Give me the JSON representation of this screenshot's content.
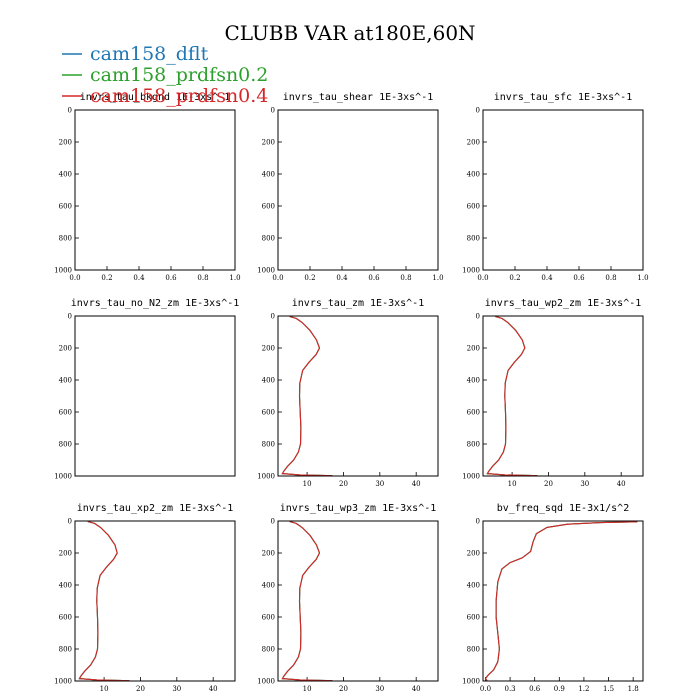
{
  "figure_title": "CLUBB VAR at180E,60N",
  "legend": [
    {
      "name": "cam158_dflt",
      "color": "#1f77b4"
    },
    {
      "name": "cam158_prdfsn0.2",
      "color": "#2ca02c"
    },
    {
      "name": "cam158_prdfsn0.4",
      "color": "#d62728"
    }
  ],
  "chart_data": [
    {
      "type": "line",
      "title": "invrs_tau_bkgnd 1E-3xs^-1",
      "xlim": [
        0,
        1
      ],
      "ylim": [
        0,
        1000
      ],
      "y_inverted": true,
      "xticks": [
        0,
        0.2,
        0.4,
        0.6,
        0.8,
        1.0
      ],
      "xtick_labels": [
        "0.0",
        "0.2",
        "0.4",
        "0.6",
        "0.8",
        "1.0"
      ],
      "yticks": [
        0,
        200,
        400,
        600,
        800,
        1000
      ],
      "series": []
    },
    {
      "type": "line",
      "title": "invrs_tau_shear 1E-3xs^-1",
      "xlim": [
        0,
        1
      ],
      "ylim": [
        0,
        1000
      ],
      "y_inverted": true,
      "xticks": [
        0,
        0.2,
        0.4,
        0.6,
        0.8,
        1.0
      ],
      "xtick_labels": [
        "0.0",
        "0.2",
        "0.4",
        "0.6",
        "0.8",
        "1.0"
      ],
      "yticks": [
        0,
        200,
        400,
        600,
        800,
        1000
      ],
      "series": []
    },
    {
      "type": "line",
      "title": "invrs_tau_sfc 1E-3xs^-1",
      "xlim": [
        0,
        1
      ],
      "ylim": [
        0,
        1000
      ],
      "y_inverted": true,
      "xticks": [
        0,
        0.2,
        0.4,
        0.6,
        0.8,
        1.0
      ],
      "xtick_labels": [
        "0.0",
        "0.2",
        "0.4",
        "0.6",
        "0.8",
        "1.0"
      ],
      "yticks": [
        0,
        200,
        400,
        600,
        800,
        1000
      ],
      "series": []
    },
    {
      "type": "line",
      "title": "invrs_tau_no_N2_zm 1E-3xs^-1",
      "xlim": [
        0,
        1
      ],
      "ylim": [
        0,
        1000
      ],
      "y_inverted": true,
      "xticks": [],
      "xtick_labels": [],
      "yticks": [
        0,
        200,
        400,
        600,
        800,
        1000
      ],
      "series": []
    },
    {
      "type": "line",
      "title": "invrs_tau_zm 1E-3xs^-1",
      "xlim": [
        2,
        46
      ],
      "ylim": [
        0,
        1000
      ],
      "y_inverted": true,
      "xticks": [
        10,
        20,
        30,
        40
      ],
      "xtick_labels": [
        "10",
        "20",
        "30",
        "40"
      ],
      "yticks": [
        0,
        200,
        400,
        600,
        800,
        1000
      ],
      "series": [
        {
          "name": "cam158_dflt",
          "color": "#1f77b4",
          "x": [
            5.2,
            7.0,
            8.6,
            10.8,
            12.6,
            13.4,
            12.5,
            10.5,
            8.8,
            8.0,
            7.9,
            8.1,
            8.3,
            8.2,
            7.6,
            6.3,
            4.6,
            3.6,
            3.2,
            8.0,
            17.0
          ],
          "y": [
            3,
            15,
            40,
            90,
            150,
            200,
            240,
            290,
            340,
            420,
            500,
            600,
            700,
            800,
            850,
            900,
            940,
            970,
            985,
            993,
            998
          ]
        },
        {
          "name": "cam158_prdfsn0.2",
          "color": "#2ca02c",
          "x": [
            5.2,
            7.0,
            8.6,
            10.8,
            12.6,
            13.4,
            12.5,
            10.5,
            8.8,
            8.0,
            7.9,
            8.1,
            8.3,
            8.2,
            7.6,
            6.3,
            4.6,
            3.6,
            3.2,
            8.0,
            17.0
          ],
          "y": [
            3,
            15,
            40,
            90,
            150,
            200,
            240,
            290,
            340,
            420,
            500,
            600,
            700,
            800,
            850,
            900,
            940,
            970,
            985,
            993,
            998
          ]
        },
        {
          "name": "cam158_prdfsn0.4",
          "color": "#d62728",
          "x": [
            5.2,
            7.0,
            8.6,
            10.8,
            12.6,
            13.4,
            12.5,
            10.5,
            8.8,
            8.0,
            7.9,
            8.1,
            8.3,
            8.2,
            7.6,
            6.3,
            4.6,
            3.6,
            3.2,
            8.0,
            17.0
          ],
          "y": [
            3,
            15,
            40,
            90,
            150,
            200,
            240,
            290,
            340,
            420,
            500,
            600,
            700,
            800,
            850,
            900,
            940,
            970,
            985,
            993,
            998
          ]
        }
      ]
    },
    {
      "type": "line",
      "title": "invrs_tau_wp2_zm 1E-3xs^-1",
      "xlim": [
        2,
        46
      ],
      "ylim": [
        0,
        1000
      ],
      "y_inverted": true,
      "xticks": [
        10,
        20,
        30,
        40
      ],
      "xtick_labels": [
        "10",
        "20",
        "30",
        "40"
      ],
      "yticks": [
        0,
        200,
        400,
        600,
        800,
        1000
      ],
      "series": [
        {
          "name": "cam158_dflt",
          "color": "#1f77b4",
          "x": [
            5.4,
            7.2,
            8.8,
            11.0,
            12.8,
            13.5,
            12.6,
            10.6,
            8.9,
            8.1,
            8.0,
            8.2,
            8.3,
            8.2,
            7.6,
            6.3,
            4.6,
            3.6,
            3.2,
            8.0,
            17.0
          ],
          "y": [
            3,
            15,
            40,
            90,
            150,
            200,
            240,
            290,
            340,
            420,
            500,
            600,
            700,
            800,
            850,
            900,
            940,
            970,
            985,
            993,
            998
          ]
        },
        {
          "name": "cam158_prdfsn0.2",
          "color": "#2ca02c",
          "x": [
            5.4,
            7.2,
            8.8,
            11.0,
            12.8,
            13.5,
            12.6,
            10.6,
            8.9,
            8.1,
            8.0,
            8.2,
            8.3,
            8.2,
            7.6,
            6.3,
            4.6,
            3.6,
            3.2,
            8.0,
            17.0
          ],
          "y": [
            3,
            15,
            40,
            90,
            150,
            200,
            240,
            290,
            340,
            420,
            500,
            600,
            700,
            800,
            850,
            900,
            940,
            970,
            985,
            993,
            998
          ]
        },
        {
          "name": "cam158_prdfsn0.4",
          "color": "#d62728",
          "x": [
            5.4,
            7.2,
            8.8,
            11.0,
            12.8,
            13.5,
            12.6,
            10.6,
            8.9,
            8.1,
            8.0,
            8.2,
            8.3,
            8.2,
            7.6,
            6.3,
            4.6,
            3.6,
            3.2,
            8.0,
            17.0
          ],
          "y": [
            3,
            15,
            40,
            90,
            150,
            200,
            240,
            290,
            340,
            420,
            500,
            600,
            700,
            800,
            850,
            900,
            940,
            970,
            985,
            993,
            998
          ]
        }
      ]
    },
    {
      "type": "line",
      "title": "invrs_tau_xp2_zm 1E-3xs^-1",
      "xlim": [
        2,
        46
      ],
      "ylim": [
        0,
        1000
      ],
      "y_inverted": true,
      "xticks": [
        10,
        20,
        30,
        40
      ],
      "xtick_labels": [
        "10",
        "20",
        "30",
        "40"
      ],
      "yticks": [
        0,
        200,
        400,
        600,
        800,
        1000
      ],
      "series": [
        {
          "name": "cam158_dflt",
          "color": "#1f77b4",
          "x": [
            5.5,
            7.4,
            9.0,
            11.2,
            13.0,
            13.6,
            12.6,
            10.6,
            8.9,
            8.1,
            8.0,
            8.2,
            8.3,
            8.2,
            7.6,
            6.3,
            4.6,
            3.6,
            3.2,
            8.0,
            17.0
          ],
          "y": [
            3,
            15,
            40,
            90,
            150,
            200,
            240,
            290,
            340,
            420,
            500,
            600,
            700,
            800,
            850,
            900,
            940,
            970,
            985,
            993,
            998
          ]
        },
        {
          "name": "cam158_prdfsn0.2",
          "color": "#2ca02c",
          "x": [
            5.5,
            7.4,
            9.0,
            11.2,
            13.0,
            13.6,
            12.6,
            10.6,
            8.9,
            8.1,
            8.0,
            8.2,
            8.3,
            8.2,
            7.6,
            6.3,
            4.6,
            3.6,
            3.2,
            8.0,
            17.0
          ],
          "y": [
            3,
            15,
            40,
            90,
            150,
            200,
            240,
            290,
            340,
            420,
            500,
            600,
            700,
            800,
            850,
            900,
            940,
            970,
            985,
            993,
            998
          ]
        },
        {
          "name": "cam158_prdfsn0.4",
          "color": "#d62728",
          "x": [
            5.5,
            7.4,
            9.0,
            11.2,
            13.0,
            13.6,
            12.6,
            10.6,
            8.9,
            8.1,
            8.0,
            8.2,
            8.3,
            8.2,
            7.6,
            6.3,
            4.6,
            3.6,
            3.2,
            8.0,
            17.0
          ],
          "y": [
            3,
            15,
            40,
            90,
            150,
            200,
            240,
            290,
            340,
            420,
            500,
            600,
            700,
            800,
            850,
            900,
            940,
            970,
            985,
            993,
            998
          ]
        }
      ]
    },
    {
      "type": "line",
      "title": "invrs_tau_wp3_zm 1E-3xs^-1",
      "xlim": [
        2,
        46
      ],
      "ylim": [
        0,
        1000
      ],
      "y_inverted": true,
      "xticks": [
        10,
        20,
        30,
        40
      ],
      "xtick_labels": [
        "10",
        "20",
        "30",
        "40"
      ],
      "yticks": [
        0,
        200,
        400,
        600,
        800,
        1000
      ],
      "series": [
        {
          "name": "cam158_dflt",
          "color": "#1f77b4",
          "x": [
            5.2,
            7.0,
            8.6,
            10.8,
            12.6,
            13.4,
            12.5,
            10.5,
            8.8,
            8.0,
            7.9,
            8.1,
            8.3,
            8.2,
            7.6,
            6.3,
            4.6,
            3.6,
            3.2,
            8.0,
            17.0
          ],
          "y": [
            3,
            15,
            40,
            90,
            150,
            200,
            240,
            290,
            340,
            420,
            500,
            600,
            700,
            800,
            850,
            900,
            940,
            970,
            985,
            993,
            998
          ]
        },
        {
          "name": "cam158_prdfsn0.2",
          "color": "#2ca02c",
          "x": [
            5.2,
            7.0,
            8.6,
            10.8,
            12.6,
            13.4,
            12.5,
            10.5,
            8.8,
            8.0,
            7.9,
            8.1,
            8.3,
            8.2,
            7.6,
            6.3,
            4.6,
            3.6,
            3.2,
            8.0,
            17.0
          ],
          "y": [
            3,
            15,
            40,
            90,
            150,
            200,
            240,
            290,
            340,
            420,
            500,
            600,
            700,
            800,
            850,
            900,
            940,
            970,
            985,
            993,
            998
          ]
        },
        {
          "name": "cam158_prdfsn0.4",
          "color": "#d62728",
          "x": [
            5.2,
            7.0,
            8.6,
            10.8,
            12.6,
            13.4,
            12.5,
            10.5,
            8.8,
            8.0,
            7.9,
            8.1,
            8.3,
            8.2,
            7.6,
            6.3,
            4.6,
            3.6,
            3.2,
            8.0,
            17.0
          ],
          "y": [
            3,
            15,
            40,
            90,
            150,
            200,
            240,
            290,
            340,
            420,
            500,
            600,
            700,
            800,
            850,
            900,
            940,
            970,
            985,
            993,
            998
          ]
        }
      ]
    },
    {
      "type": "line",
      "title": "bv_freq_sqd 1E-3x1/s^2",
      "xlim": [
        -0.03,
        1.92
      ],
      "ylim": [
        0,
        1000
      ],
      "y_inverted": true,
      "xticks": [
        0,
        0.3,
        0.6,
        0.9,
        1.2,
        1.5,
        1.8
      ],
      "xtick_labels": [
        "0.0",
        "0.3",
        "0.6",
        "0.9",
        "1.2",
        "1.5",
        "1.8"
      ],
      "yticks": [
        0,
        200,
        400,
        600,
        800,
        1000
      ],
      "series": [
        {
          "name": "cam158_dflt",
          "color": "#1f77b4",
          "x": [
            1.85,
            1.4,
            1.0,
            0.75,
            0.62,
            0.58,
            0.55,
            0.45,
            0.3,
            0.2,
            0.15,
            0.13,
            0.13,
            0.15,
            0.17,
            0.15,
            0.1,
            0.03,
            0.0,
            0.02
          ],
          "y": [
            5,
            10,
            20,
            40,
            80,
            130,
            190,
            230,
            260,
            300,
            380,
            500,
            600,
            700,
            800,
            880,
            930,
            965,
            985,
            998
          ]
        },
        {
          "name": "cam158_prdfsn0.2",
          "color": "#2ca02c",
          "x": [
            1.85,
            1.4,
            1.0,
            0.75,
            0.62,
            0.58,
            0.55,
            0.45,
            0.3,
            0.2,
            0.15,
            0.13,
            0.13,
            0.15,
            0.17,
            0.15,
            0.1,
            0.03,
            0.0,
            0.02
          ],
          "y": [
            5,
            10,
            20,
            40,
            80,
            130,
            190,
            230,
            260,
            300,
            380,
            500,
            600,
            700,
            800,
            880,
            930,
            965,
            985,
            998
          ]
        },
        {
          "name": "cam158_prdfsn0.4",
          "color": "#d62728",
          "x": [
            1.85,
            1.4,
            1.0,
            0.75,
            0.62,
            0.58,
            0.55,
            0.45,
            0.3,
            0.2,
            0.15,
            0.13,
            0.13,
            0.15,
            0.17,
            0.15,
            0.1,
            0.03,
            0.0,
            0.02
          ],
          "y": [
            5,
            10,
            20,
            40,
            80,
            130,
            190,
            230,
            260,
            300,
            380,
            500,
            600,
            700,
            800,
            880,
            930,
            965,
            985,
            998
          ]
        }
      ]
    }
  ]
}
